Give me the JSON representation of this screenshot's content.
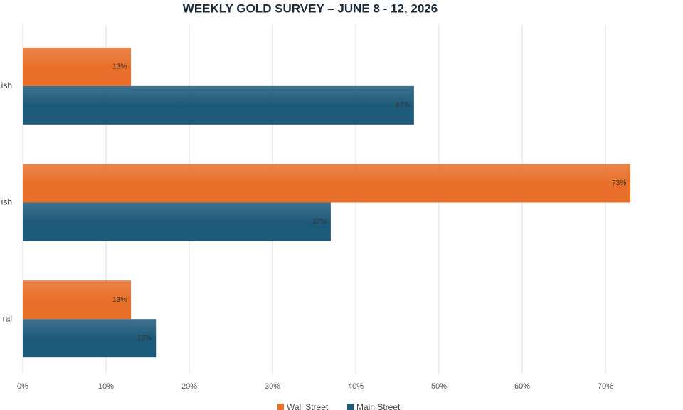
{
  "chart_data": {
    "type": "bar",
    "orientation": "horizontal",
    "title": "WEEKLY GOLD SURVEY – JUNE 8 - 12, 2026",
    "categories": [
      "ish",
      "ish",
      "ral"
    ],
    "series": [
      {
        "name": "Wall Street",
        "color": "#e8702a",
        "values": [
          13,
          73,
          13
        ],
        "value_labels": [
          "13%",
          "73%",
          "13%"
        ]
      },
      {
        "name": "Main Street",
        "color": "#1d5a7a",
        "values": [
          47,
          37,
          16
        ],
        "value_labels": [
          "47%",
          "37%",
          "16%"
        ]
      }
    ],
    "xlim": [
      0,
      80
    ],
    "xticks": [
      {
        "value": 0,
        "label": "0%"
      },
      {
        "value": 10,
        "label": "10%"
      },
      {
        "value": 20,
        "label": "20%"
      },
      {
        "value": 30,
        "label": "30%"
      },
      {
        "value": 40,
        "label": "40%"
      },
      {
        "value": 50,
        "label": "50%"
      },
      {
        "value": 60,
        "label": "60%"
      },
      {
        "value": 70,
        "label": "70%"
      }
    ],
    "grid": true,
    "legend": "bottom"
  }
}
